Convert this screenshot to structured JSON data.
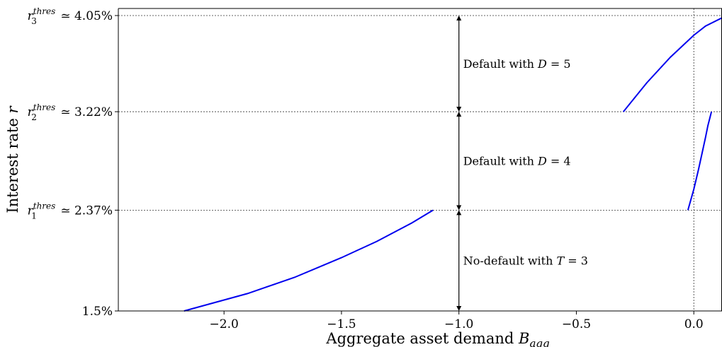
{
  "chart_data": {
    "type": "line",
    "xlabel": "Aggregate asset demand B",
    "xlabel_subscript": "agg",
    "ylabel": "Interest rate r",
    "xlim": [
      -2.45,
      0.12
    ],
    "ylim": [
      1.5,
      4.05
    ],
    "x_ticks": [
      {
        "value": -2.0,
        "label": "−2.0"
      },
      {
        "value": -1.5,
        "label": "−1.5"
      },
      {
        "value": -1.0,
        "label": "−1.0"
      },
      {
        "value": -0.5,
        "label": "−0.5"
      },
      {
        "value": 0.0,
        "label": "0.0"
      }
    ],
    "y_ticks": [
      {
        "value": 1.5,
        "main": "1.5%",
        "sup": ""
      },
      {
        "value": 2.37,
        "main": "r",
        "sub": "1",
        "sup": "thres",
        "suffix": " ≃ 2.37%"
      },
      {
        "value": 3.22,
        "main": "r",
        "sub": "2",
        "sup": "thres",
        "suffix": " ≃ 3.22%"
      },
      {
        "value": 4.05,
        "main": "r",
        "sub": "3",
        "sup": "thres",
        "suffix": " ≃ 4.05%"
      }
    ],
    "threshold_lines": [
      2.37,
      3.22,
      4.05
    ],
    "vertical_reference_x": 0.0,
    "series": [
      {
        "x": [
          -2.17,
          -1.9,
          -1.7,
          -1.5,
          -1.35,
          -1.2,
          -1.11
        ],
        "y": [
          1.5,
          1.65,
          1.79,
          1.96,
          2.1,
          2.26,
          2.37
        ]
      },
      {
        "x": [
          -0.3,
          -0.2,
          -0.1,
          0.0,
          0.05,
          0.12
        ],
        "y": [
          3.22,
          3.47,
          3.69,
          3.88,
          3.96,
          4.03
        ]
      },
      {
        "x": [
          -0.025,
          0.0,
          0.02,
          0.035,
          0.05,
          0.06,
          0.075
        ],
        "y": [
          2.37,
          2.55,
          2.72,
          2.86,
          3.0,
          3.1,
          3.22
        ]
      }
    ],
    "series_color": "#0000ee",
    "annotations": [
      {
        "x": -1.0,
        "y_from": 1.5,
        "y_to": 2.37,
        "text": "No-default with ",
        "var": "T",
        "rest": " = 3"
      },
      {
        "x": -1.0,
        "y_from": 2.37,
        "y_to": 3.22,
        "text": "Default with ",
        "var": "D",
        "rest": " = 4"
      },
      {
        "x": -1.0,
        "y_from": 3.22,
        "y_to": 4.05,
        "text": "Default with ",
        "var": "D",
        "rest": " = 5"
      }
    ]
  }
}
